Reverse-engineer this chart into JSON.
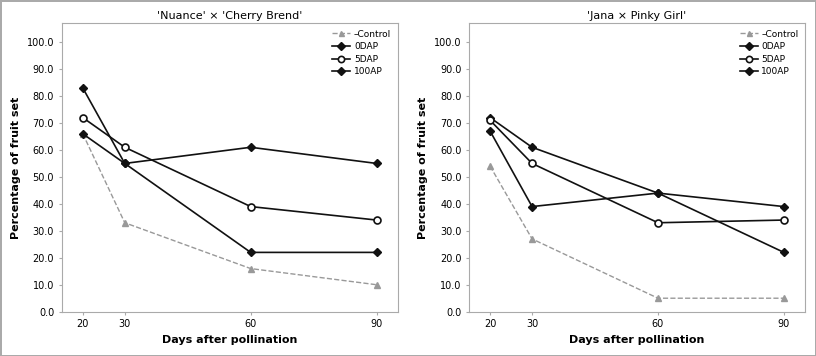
{
  "x": [
    20,
    30,
    60,
    90
  ],
  "chart1": {
    "title": "'Nuance' × 'Cherry Brend'",
    "control": [
      66.0,
      33.0,
      16.0,
      10.0
    ],
    "ddap": [
      83.0,
      55.0,
      61.0,
      55.0
    ],
    "sdap": [
      72.0,
      61.0,
      39.0,
      34.0
    ],
    "hundap": [
      66.0,
      55.0,
      22.0,
      22.0
    ]
  },
  "chart2": {
    "title": "'Jana × Pinky Girl'",
    "control": [
      54.0,
      27.0,
      5.0,
      5.0
    ],
    "ddap": [
      72.0,
      61.0,
      44.0,
      39.0
    ],
    "sdap": [
      71.0,
      55.0,
      33.0,
      34.0
    ],
    "hundap": [
      67.0,
      39.0,
      44.0,
      22.0
    ]
  },
  "ylabel": "Percentage of fruit set",
  "xlabel": "Days after pollination",
  "yticks": [
    0.0,
    10.0,
    20.0,
    30.0,
    40.0,
    50.0,
    60.0,
    70.0,
    80.0,
    90.0,
    100.0
  ],
  "legend_labels": [
    "–Control",
    "0DAP",
    "5DAP",
    "100AP"
  ],
  "color_solid": "#111111",
  "color_control": "#999999",
  "bg_color": "#ffffff"
}
